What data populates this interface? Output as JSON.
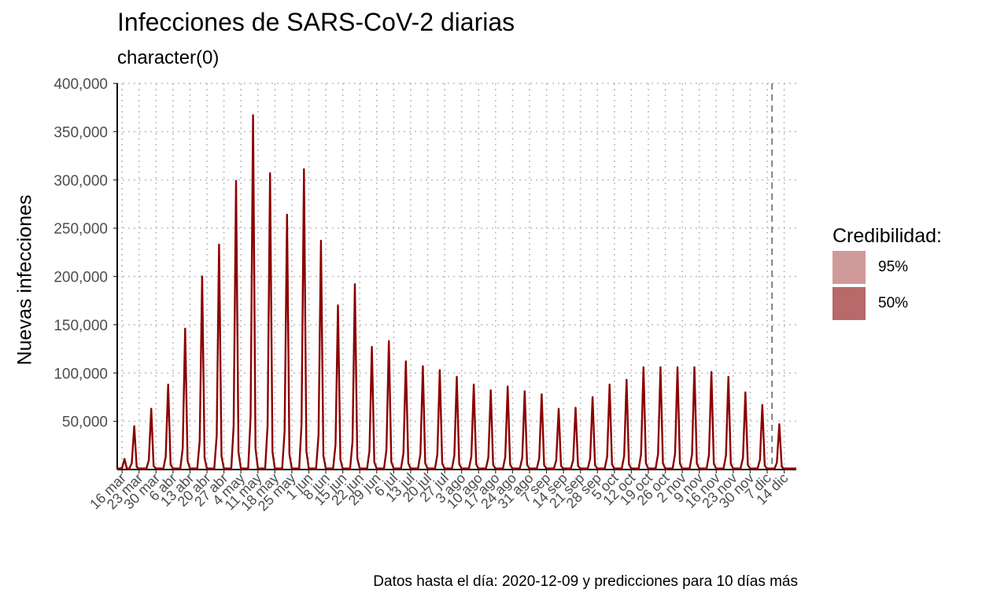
{
  "chart_data": {
    "type": "line",
    "title": "Infecciones de SARS-CoV-2 diarias",
    "subtitle": "character(0)",
    "ylabel": "Nuevas infecciones",
    "caption": "Datos hasta el día: 2020-12-09 y predicciones para 10 días más",
    "ylim": [
      0,
      400000
    ],
    "xlim": [
      "2020-03-14",
      "2020-12-19"
    ],
    "grid": true,
    "y_ticks": [
      50000,
      100000,
      150000,
      200000,
      250000,
      300000,
      350000,
      400000
    ],
    "y_tick_labels": [
      "50,000",
      "100,000",
      "150,000",
      "200,000",
      "250,000",
      "300,000",
      "350,000",
      "400,000"
    ],
    "x_ticks": [
      "2020-03-16",
      "2020-03-23",
      "2020-03-30",
      "2020-04-06",
      "2020-04-13",
      "2020-04-20",
      "2020-04-27",
      "2020-05-04",
      "2020-05-11",
      "2020-05-18",
      "2020-05-25",
      "2020-06-01",
      "2020-06-08",
      "2020-06-15",
      "2020-06-22",
      "2020-06-29",
      "2020-07-06",
      "2020-07-13",
      "2020-07-20",
      "2020-07-27",
      "2020-08-03",
      "2020-08-10",
      "2020-08-17",
      "2020-08-24",
      "2020-08-31",
      "2020-09-07",
      "2020-09-14",
      "2020-09-21",
      "2020-09-28",
      "2020-10-05",
      "2020-10-12",
      "2020-10-19",
      "2020-10-26",
      "2020-11-02",
      "2020-11-09",
      "2020-11-16",
      "2020-11-23",
      "2020-11-30",
      "2020-12-07",
      "2020-12-14"
    ],
    "x_tick_labels": [
      "16 mar",
      "23 mar",
      "30 mar",
      "6 abr",
      "13 abr",
      "20 abr",
      "27 abr",
      "4 may",
      "11 may",
      "18 may",
      "25 may",
      "1 jun",
      "8 jun",
      "15 jun",
      "22 jun",
      "29 jun",
      "6 jul",
      "13 jul",
      "20 jul",
      "27 jul",
      "3 ago",
      "10 ago",
      "17 ago",
      "24 ago",
      "31 ago",
      "7 sep",
      "14 sep",
      "21 sep",
      "28 sep",
      "5 oct",
      "12 oct",
      "19 oct",
      "26 oct",
      "2 nov",
      "9 nov",
      "16 nov",
      "23 nov",
      "30 nov",
      "7 dic",
      "14 dic"
    ],
    "vline": "2020-12-09",
    "legend": {
      "title": "Credibilidad:",
      "position": "right",
      "items": [
        {
          "label": "95%",
          "color": "#d09a9a"
        },
        {
          "label": "50%",
          "color": "#b86969"
        }
      ]
    },
    "line_color": "#8b0000",
    "series": [
      {
        "type": "weekly_peaks",
        "peaks": [
          {
            "date": "2020-03-17",
            "value": 11000
          },
          {
            "date": "2020-03-21",
            "value": 45000
          },
          {
            "date": "2020-03-28",
            "value": 63000
          },
          {
            "date": "2020-04-04",
            "value": 88000
          },
          {
            "date": "2020-04-11",
            "value": 146000
          },
          {
            "date": "2020-04-18",
            "value": 200000
          },
          {
            "date": "2020-04-25",
            "value": 233000
          },
          {
            "date": "2020-05-02",
            "value": 299000
          },
          {
            "date": "2020-05-09",
            "value": 367000
          },
          {
            "date": "2020-05-16",
            "value": 307000
          },
          {
            "date": "2020-05-23",
            "value": 264000
          },
          {
            "date": "2020-05-30",
            "value": 311000
          },
          {
            "date": "2020-06-06",
            "value": 237000
          },
          {
            "date": "2020-06-13",
            "value": 170000
          },
          {
            "date": "2020-06-20",
            "value": 192000
          },
          {
            "date": "2020-06-27",
            "value": 127000
          },
          {
            "date": "2020-07-04",
            "value": 133000
          },
          {
            "date": "2020-07-11",
            "value": 112000
          },
          {
            "date": "2020-07-18",
            "value": 107000
          },
          {
            "date": "2020-07-25",
            "value": 103000
          },
          {
            "date": "2020-08-01",
            "value": 96000
          },
          {
            "date": "2020-08-08",
            "value": 88000
          },
          {
            "date": "2020-08-15",
            "value": 82000
          },
          {
            "date": "2020-08-22",
            "value": 86000
          },
          {
            "date": "2020-08-29",
            "value": 81000
          },
          {
            "date": "2020-09-05",
            "value": 78000
          },
          {
            "date": "2020-09-12",
            "value": 63000
          },
          {
            "date": "2020-09-19",
            "value": 64000
          },
          {
            "date": "2020-09-26",
            "value": 75000
          },
          {
            "date": "2020-10-03",
            "value": 88000
          },
          {
            "date": "2020-10-10",
            "value": 93000
          },
          {
            "date": "2020-10-17",
            "value": 106000
          },
          {
            "date": "2020-10-24",
            "value": 106000
          },
          {
            "date": "2020-10-31",
            "value": 106000
          },
          {
            "date": "2020-11-07",
            "value": 106000
          },
          {
            "date": "2020-11-14",
            "value": 101000
          },
          {
            "date": "2020-11-21",
            "value": 96000
          },
          {
            "date": "2020-11-28",
            "value": 80000
          },
          {
            "date": "2020-12-05",
            "value": 67000
          },
          {
            "date": "2020-12-12",
            "value": 47000
          }
        ]
      }
    ]
  }
}
